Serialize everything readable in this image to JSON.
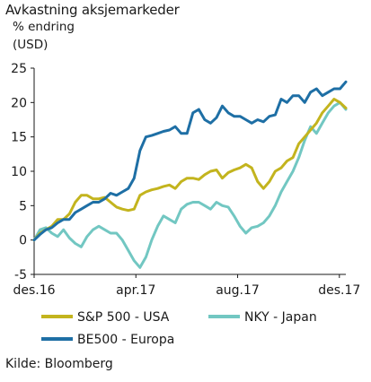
{
  "header": {
    "title": "Avkastning aksjemarkeder",
    "unit_line1": "% endring",
    "unit_line2": "(USD)"
  },
  "source": "Kilde: Bloomberg",
  "chart_data": {
    "type": "line",
    "title": "Avkastning aksjemarkeder",
    "ylabel": "% endring (USD)",
    "xlabel": "",
    "ylim": [
      -5,
      25
    ],
    "yticks": [
      -5,
      0,
      5,
      10,
      15,
      20,
      25
    ],
    "xlim": [
      0,
      53
    ],
    "xticks": [
      {
        "x": 0,
        "label": "des.16"
      },
      {
        "x": 17.3,
        "label": "apr.17"
      },
      {
        "x": 34.6,
        "label": "aug.17"
      },
      {
        "x": 51.9,
        "label": "des.17"
      }
    ],
    "grid": false,
    "legend_position": "bottom",
    "series": [
      {
        "name": "S&P 500 - USA",
        "color": "#c3b41e",
        "x": [
          0,
          1,
          2,
          3,
          4,
          5,
          6,
          7,
          8,
          9,
          10,
          11,
          12,
          13,
          14,
          15,
          16,
          17,
          18,
          19,
          20,
          21,
          22,
          23,
          24,
          25,
          26,
          27,
          28,
          29,
          30,
          31,
          32,
          33,
          34,
          35,
          36,
          37,
          38,
          39,
          40,
          41,
          42,
          43,
          44,
          45,
          46,
          47,
          48,
          49,
          50,
          51,
          52,
          53
        ],
        "values": [
          0,
          1,
          1.5,
          2,
          3,
          3,
          3.8,
          5.5,
          6.5,
          6.5,
          6,
          6,
          6.2,
          5.5,
          4.8,
          4.5,
          4.3,
          4.5,
          6.5,
          7,
          7.3,
          7.5,
          7.8,
          8,
          7.5,
          8.5,
          9,
          9,
          8.8,
          9.5,
          10,
          10.2,
          9,
          9.8,
          10.2,
          10.5,
          11,
          10.5,
          8.5,
          7.5,
          8.5,
          10,
          10.5,
          11.5,
          12,
          14,
          15,
          16,
          17,
          18.5,
          19.5,
          20.5,
          20,
          19.2
        ]
      },
      {
        "name": "NKY - Japan",
        "color": "#72c7c2",
        "x": [
          0,
          1,
          2,
          3,
          4,
          5,
          6,
          7,
          8,
          9,
          10,
          11,
          12,
          13,
          14,
          15,
          16,
          17,
          18,
          19,
          20,
          21,
          22,
          23,
          24,
          25,
          26,
          27,
          28,
          29,
          30,
          31,
          32,
          33,
          34,
          35,
          36,
          37,
          38,
          39,
          40,
          41,
          42,
          43,
          44,
          45,
          46,
          47,
          48,
          49,
          50,
          51,
          52,
          53
        ],
        "values": [
          0,
          1.5,
          1.8,
          1,
          0.5,
          1.5,
          0.3,
          -0.5,
          -1,
          0.5,
          1.5,
          2,
          1.5,
          1,
          1,
          0,
          -1.5,
          -3,
          -4,
          -2.5,
          0,
          2,
          3.5,
          3,
          2.5,
          4.5,
          5.2,
          5.5,
          5.5,
          5,
          4.5,
          5.5,
          5,
          4.8,
          3.5,
          2,
          1,
          1.8,
          2,
          2.5,
          3.5,
          5,
          7,
          8.5,
          10,
          12,
          14.5,
          16.5,
          15.5,
          17,
          18.5,
          19.5,
          20,
          19
        ]
      },
      {
        "name": "BE500 - Europa",
        "color": "#1e6fa5",
        "x": [
          0,
          1,
          2,
          3,
          4,
          5,
          6,
          7,
          8,
          9,
          10,
          11,
          12,
          13,
          14,
          15,
          16,
          17,
          18,
          19,
          20,
          21,
          22,
          23,
          24,
          25,
          26,
          27,
          28,
          29,
          30,
          31,
          32,
          33,
          34,
          35,
          36,
          37,
          38,
          39,
          40,
          41,
          42,
          43,
          44,
          45,
          46,
          47,
          48,
          49,
          50,
          51,
          52,
          53
        ],
        "values": [
          0,
          0.8,
          1.5,
          1.8,
          2.5,
          3,
          3,
          4,
          4.5,
          5,
          5.5,
          5.5,
          6,
          6.8,
          6.5,
          7,
          7.5,
          9,
          13,
          15,
          15.2,
          15.5,
          15.8,
          16,
          16.5,
          15.5,
          15.5,
          18.5,
          19,
          17.5,
          17,
          17.8,
          19.5,
          18.5,
          18,
          18,
          17.5,
          17,
          17.5,
          17.2,
          18,
          18.2,
          20.5,
          20,
          21,
          21,
          20,
          21.5,
          22,
          21,
          21.5,
          22,
          22,
          23
        ]
      }
    ]
  }
}
